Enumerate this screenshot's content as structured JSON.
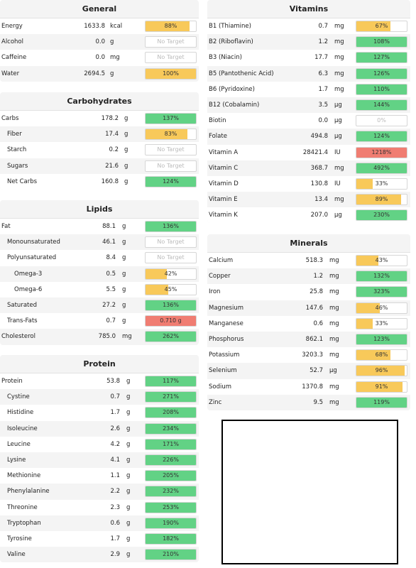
{
  "colors": {
    "green": "#62d285",
    "orange": "#f8c95a",
    "red": "#f07d72"
  },
  "panels": [
    {
      "key": "general",
      "title": "General",
      "rows": [
        {
          "name": "Energy",
          "value": "1633.8",
          "unit": "kcal",
          "pct": "88%",
          "fill": 0.88,
          "color": "orange",
          "indent": 0
        },
        {
          "name": "Alcohol",
          "value": "0.0",
          "unit": "g",
          "pct": "No Target",
          "fill": 0,
          "color": "none",
          "indent": 0
        },
        {
          "name": "Caffeine",
          "value": "0.0",
          "unit": "mg",
          "pct": "No Target",
          "fill": 0,
          "color": "none",
          "indent": 0
        },
        {
          "name": "Water",
          "value": "2694.5",
          "unit": "g",
          "pct": "100%",
          "fill": 1.0,
          "color": "orange",
          "indent": 0
        }
      ]
    },
    {
      "key": "carbohydrates",
      "title": "Carbohydrates",
      "rows": [
        {
          "name": "Carbs",
          "value": "178.2",
          "unit": "g",
          "pct": "137%",
          "fill": 1.0,
          "color": "green",
          "indent": 0
        },
        {
          "name": "Fiber",
          "value": "17.4",
          "unit": "g",
          "pct": "83%",
          "fill": 0.83,
          "color": "orange",
          "indent": 1
        },
        {
          "name": "Starch",
          "value": "0.2",
          "unit": "g",
          "pct": "No Target",
          "fill": 0,
          "color": "none",
          "indent": 1
        },
        {
          "name": "Sugars",
          "value": "21.6",
          "unit": "g",
          "pct": "No Target",
          "fill": 0,
          "color": "none",
          "indent": 1
        },
        {
          "name": "Net Carbs",
          "value": "160.8",
          "unit": "g",
          "pct": "124%",
          "fill": 1.0,
          "color": "green",
          "indent": 1
        }
      ]
    },
    {
      "key": "lipids",
      "title": "Lipids",
      "rows": [
        {
          "name": "Fat",
          "value": "88.1",
          "unit": "g",
          "pct": "136%",
          "fill": 1.0,
          "color": "green",
          "indent": 0
        },
        {
          "name": "Monounsaturated",
          "value": "46.1",
          "unit": "g",
          "pct": "No Target",
          "fill": 0,
          "color": "none",
          "indent": 1
        },
        {
          "name": "Polyunsaturated",
          "value": "8.4",
          "unit": "g",
          "pct": "No Target",
          "fill": 0,
          "color": "none",
          "indent": 1
        },
        {
          "name": "Omega-3",
          "value": "0.5",
          "unit": "g",
          "pct": "42%",
          "fill": 0.42,
          "color": "orange",
          "indent": 2
        },
        {
          "name": "Omega-6",
          "value": "5.5",
          "unit": "g",
          "pct": "45%",
          "fill": 0.45,
          "color": "orange",
          "indent": 2
        },
        {
          "name": "Saturated",
          "value": "27.2",
          "unit": "g",
          "pct": "136%",
          "fill": 1.0,
          "color": "green",
          "indent": 1
        },
        {
          "name": "Trans-Fats",
          "value": "0.7",
          "unit": "g",
          "pct": "0.710 g",
          "fill": 1.0,
          "color": "red",
          "indent": 1
        },
        {
          "name": "Cholesterol",
          "value": "785.0",
          "unit": "mg",
          "pct": "262%",
          "fill": 1.0,
          "color": "green",
          "indent": 0
        }
      ]
    },
    {
      "key": "protein",
      "title": "Protein",
      "rows": [
        {
          "name": "Protein",
          "value": "53.8",
          "unit": "g",
          "pct": "117%",
          "fill": 1.0,
          "color": "green",
          "indent": 0
        },
        {
          "name": "Cystine",
          "value": "0.7",
          "unit": "g",
          "pct": "271%",
          "fill": 1.0,
          "color": "green",
          "indent": 1
        },
        {
          "name": "Histidine",
          "value": "1.7",
          "unit": "g",
          "pct": "208%",
          "fill": 1.0,
          "color": "green",
          "indent": 1
        },
        {
          "name": "Isoleucine",
          "value": "2.6",
          "unit": "g",
          "pct": "234%",
          "fill": 1.0,
          "color": "green",
          "indent": 1
        },
        {
          "name": "Leucine",
          "value": "4.2",
          "unit": "g",
          "pct": "171%",
          "fill": 1.0,
          "color": "green",
          "indent": 1
        },
        {
          "name": "Lysine",
          "value": "4.1",
          "unit": "g",
          "pct": "226%",
          "fill": 1.0,
          "color": "green",
          "indent": 1
        },
        {
          "name": "Methionine",
          "value": "1.1",
          "unit": "g",
          "pct": "205%",
          "fill": 1.0,
          "color": "green",
          "indent": 1
        },
        {
          "name": "Phenylalanine",
          "value": "2.2",
          "unit": "g",
          "pct": "232%",
          "fill": 1.0,
          "color": "green",
          "indent": 1
        },
        {
          "name": "Threonine",
          "value": "2.3",
          "unit": "g",
          "pct": "253%",
          "fill": 1.0,
          "color": "green",
          "indent": 1
        },
        {
          "name": "Tryptophan",
          "value": "0.6",
          "unit": "g",
          "pct": "190%",
          "fill": 1.0,
          "color": "green",
          "indent": 1
        },
        {
          "name": "Tyrosine",
          "value": "1.7",
          "unit": "g",
          "pct": "182%",
          "fill": 1.0,
          "color": "green",
          "indent": 1
        },
        {
          "name": "Valine",
          "value": "2.9",
          "unit": "g",
          "pct": "210%",
          "fill": 1.0,
          "color": "green",
          "indent": 1
        }
      ]
    },
    {
      "key": "vitamins",
      "title": "Vitamins",
      "rows": [
        {
          "name": "B1 (Thiamine)",
          "value": "0.7",
          "unit": "mg",
          "pct": "67%",
          "fill": 0.67,
          "color": "orange",
          "indent": 0
        },
        {
          "name": "B2 (Riboflavin)",
          "value": "1.2",
          "unit": "mg",
          "pct": "108%",
          "fill": 1.0,
          "color": "green",
          "indent": 0
        },
        {
          "name": "B3 (Niacin)",
          "value": "17.7",
          "unit": "mg",
          "pct": "127%",
          "fill": 1.0,
          "color": "green",
          "indent": 0
        },
        {
          "name": "B5 (Pantothenic Acid)",
          "value": "6.3",
          "unit": "mg",
          "pct": "126%",
          "fill": 1.0,
          "color": "green",
          "indent": 0
        },
        {
          "name": "B6 (Pyridoxine)",
          "value": "1.7",
          "unit": "mg",
          "pct": "110%",
          "fill": 1.0,
          "color": "green",
          "indent": 0
        },
        {
          "name": "B12 (Cobalamin)",
          "value": "3.5",
          "unit": "µg",
          "pct": "144%",
          "fill": 1.0,
          "color": "green",
          "indent": 0
        },
        {
          "name": "Biotin",
          "value": "0.0",
          "unit": "µg",
          "pct": "0%",
          "fill": 0,
          "color": "none",
          "indent": 0
        },
        {
          "name": "Folate",
          "value": "494.8",
          "unit": "µg",
          "pct": "124%",
          "fill": 1.0,
          "color": "green",
          "indent": 0
        },
        {
          "name": "Vitamin A",
          "value": "28421.4",
          "unit": "IU",
          "pct": "1218%",
          "fill": 1.0,
          "color": "red",
          "indent": 0
        },
        {
          "name": "Vitamin C",
          "value": "368.7",
          "unit": "mg",
          "pct": "492%",
          "fill": 1.0,
          "color": "green",
          "indent": 0
        },
        {
          "name": "Vitamin D",
          "value": "130.8",
          "unit": "IU",
          "pct": "33%",
          "fill": 0.33,
          "color": "orange",
          "indent": 0
        },
        {
          "name": "Vitamin E",
          "value": "13.4",
          "unit": "mg",
          "pct": "89%",
          "fill": 0.89,
          "color": "orange",
          "indent": 0
        },
        {
          "name": "Vitamin K",
          "value": "207.0",
          "unit": "µg",
          "pct": "230%",
          "fill": 1.0,
          "color": "green",
          "indent": 0
        }
      ]
    },
    {
      "key": "minerals",
      "title": "Minerals",
      "rows": [
        {
          "name": "Calcium",
          "value": "518.3",
          "unit": "mg",
          "pct": "43%",
          "fill": 0.43,
          "color": "orange",
          "indent": 0
        },
        {
          "name": "Copper",
          "value": "1.2",
          "unit": "mg",
          "pct": "132%",
          "fill": 1.0,
          "color": "green",
          "indent": 0
        },
        {
          "name": "Iron",
          "value": "25.8",
          "unit": "mg",
          "pct": "323%",
          "fill": 1.0,
          "color": "green",
          "indent": 0
        },
        {
          "name": "Magnesium",
          "value": "147.6",
          "unit": "mg",
          "pct": "46%",
          "fill": 0.46,
          "color": "orange",
          "indent": 0
        },
        {
          "name": "Manganese",
          "value": "0.6",
          "unit": "mg",
          "pct": "33%",
          "fill": 0.33,
          "color": "orange",
          "indent": 0
        },
        {
          "name": "Phosphorus",
          "value": "862.1",
          "unit": "mg",
          "pct": "123%",
          "fill": 1.0,
          "color": "green",
          "indent": 0
        },
        {
          "name": "Potassium",
          "value": "3203.3",
          "unit": "mg",
          "pct": "68%",
          "fill": 0.68,
          "color": "orange",
          "indent": 0
        },
        {
          "name": "Selenium",
          "value": "52.7",
          "unit": "µg",
          "pct": "96%",
          "fill": 0.96,
          "color": "orange",
          "indent": 0
        },
        {
          "name": "Sodium",
          "value": "1370.8",
          "unit": "mg",
          "pct": "91%",
          "fill": 0.91,
          "color": "orange",
          "indent": 0
        },
        {
          "name": "Zinc",
          "value": "9.5",
          "unit": "mg",
          "pct": "119%",
          "fill": 1.0,
          "color": "green",
          "indent": 0
        }
      ]
    }
  ]
}
